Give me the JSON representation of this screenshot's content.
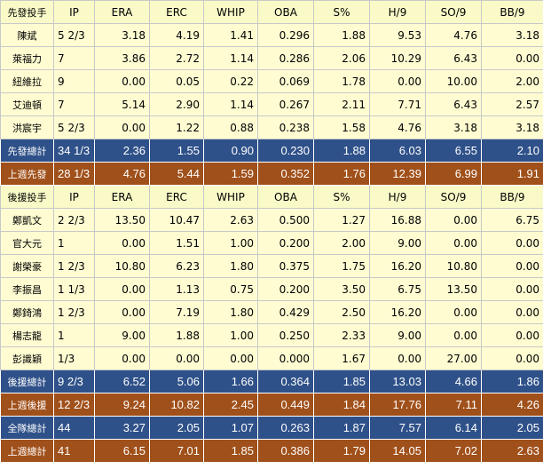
{
  "colors": {
    "header_bg": "#fafac8",
    "row_bg": "#fffcd2",
    "total_bg": "#2f5189",
    "last_week_bg": "#a0501a"
  },
  "stat_columns": [
    "IP",
    "ERA",
    "ERC",
    "WHIP",
    "OBA",
    "S%",
    "H/9",
    "SO/9",
    "BB/9"
  ],
  "sections": [
    {
      "header_label": "先發投手",
      "rows": [
        {
          "kind": "player",
          "name": "陳斌",
          "cells": [
            "5 2/3",
            "3.18",
            "4.19",
            "1.41",
            "0.296",
            "1.88",
            "9.53",
            "4.76",
            "3.18"
          ]
        },
        {
          "kind": "player",
          "name": "萊福力",
          "cells": [
            "7",
            "3.86",
            "2.72",
            "1.14",
            "0.286",
            "2.06",
            "10.29",
            "6.43",
            "0.00"
          ]
        },
        {
          "kind": "player",
          "name": "紐維拉",
          "cells": [
            "9",
            "0.00",
            "0.05",
            "0.22",
            "0.069",
            "1.78",
            "0.00",
            "10.00",
            "2.00"
          ]
        },
        {
          "kind": "player",
          "name": "艾迪頓",
          "cells": [
            "7",
            "5.14",
            "2.90",
            "1.14",
            "0.267",
            "2.11",
            "7.71",
            "6.43",
            "2.57"
          ]
        },
        {
          "kind": "player",
          "name": "洪宸宇",
          "cells": [
            "5 2/3",
            "0.00",
            "1.22",
            "0.88",
            "0.238",
            "1.58",
            "4.76",
            "3.18",
            "3.18"
          ]
        },
        {
          "kind": "total",
          "name": "先發總計",
          "cells": [
            "34 1/3",
            "2.36",
            "1.55",
            "0.90",
            "0.230",
            "1.88",
            "6.03",
            "6.55",
            "2.10"
          ]
        },
        {
          "kind": "prev",
          "name": "上週先發",
          "cells": [
            "28 1/3",
            "4.76",
            "5.44",
            "1.59",
            "0.352",
            "1.76",
            "12.39",
            "6.99",
            "1.91"
          ]
        }
      ]
    },
    {
      "header_label": "後援投手",
      "rows": [
        {
          "kind": "player",
          "name": "鄭凱文",
          "cells": [
            "2 2/3",
            "13.50",
            "10.47",
            "2.63",
            "0.500",
            "1.27",
            "16.88",
            "0.00",
            "6.75"
          ]
        },
        {
          "kind": "player",
          "name": "官大元",
          "cells": [
            "1",
            "0.00",
            "1.51",
            "1.00",
            "0.200",
            "2.00",
            "9.00",
            "0.00",
            "0.00"
          ]
        },
        {
          "kind": "player",
          "name": "謝榮豪",
          "cells": [
            "1 2/3",
            "10.80",
            "6.23",
            "1.80",
            "0.375",
            "1.75",
            "16.20",
            "10.80",
            "0.00"
          ]
        },
        {
          "kind": "player",
          "name": "李振昌",
          "cells": [
            "1 1/3",
            "0.00",
            "1.13",
            "0.75",
            "0.200",
            "3.50",
            "6.75",
            "13.50",
            "0.00"
          ]
        },
        {
          "kind": "player",
          "name": "鄭錡鴻",
          "cells": [
            "1 2/3",
            "0.00",
            "7.19",
            "1.80",
            "0.429",
            "2.50",
            "16.20",
            "0.00",
            "0.00"
          ]
        },
        {
          "kind": "player",
          "name": "楊志龍",
          "cells": [
            "1",
            "9.00",
            "1.88",
            "1.00",
            "0.250",
            "2.33",
            "9.00",
            "0.00",
            "0.00"
          ]
        },
        {
          "kind": "player",
          "name": "彭識穎",
          "cells": [
            "1/3",
            "0.00",
            "0.00",
            "0.00",
            "0.000",
            "1.67",
            "0.00",
            "27.00",
            "0.00"
          ]
        },
        {
          "kind": "total",
          "name": "後援總計",
          "cells": [
            "9 2/3",
            "6.52",
            "5.06",
            "1.66",
            "0.364",
            "1.85",
            "13.03",
            "4.66",
            "1.86"
          ]
        },
        {
          "kind": "prev",
          "name": "上週後援",
          "cells": [
            "12 2/3",
            "9.24",
            "10.82",
            "2.45",
            "0.449",
            "1.84",
            "17.76",
            "7.11",
            "4.26"
          ]
        },
        {
          "kind": "total",
          "name": "全隊總計",
          "cells": [
            "44",
            "3.27",
            "2.05",
            "1.07",
            "0.263",
            "1.87",
            "7.57",
            "6.14",
            "2.05"
          ]
        },
        {
          "kind": "prev",
          "name": "上週總計",
          "cells": [
            "41",
            "6.15",
            "7.01",
            "1.85",
            "0.386",
            "1.79",
            "14.05",
            "7.02",
            "2.63"
          ]
        }
      ]
    }
  ]
}
